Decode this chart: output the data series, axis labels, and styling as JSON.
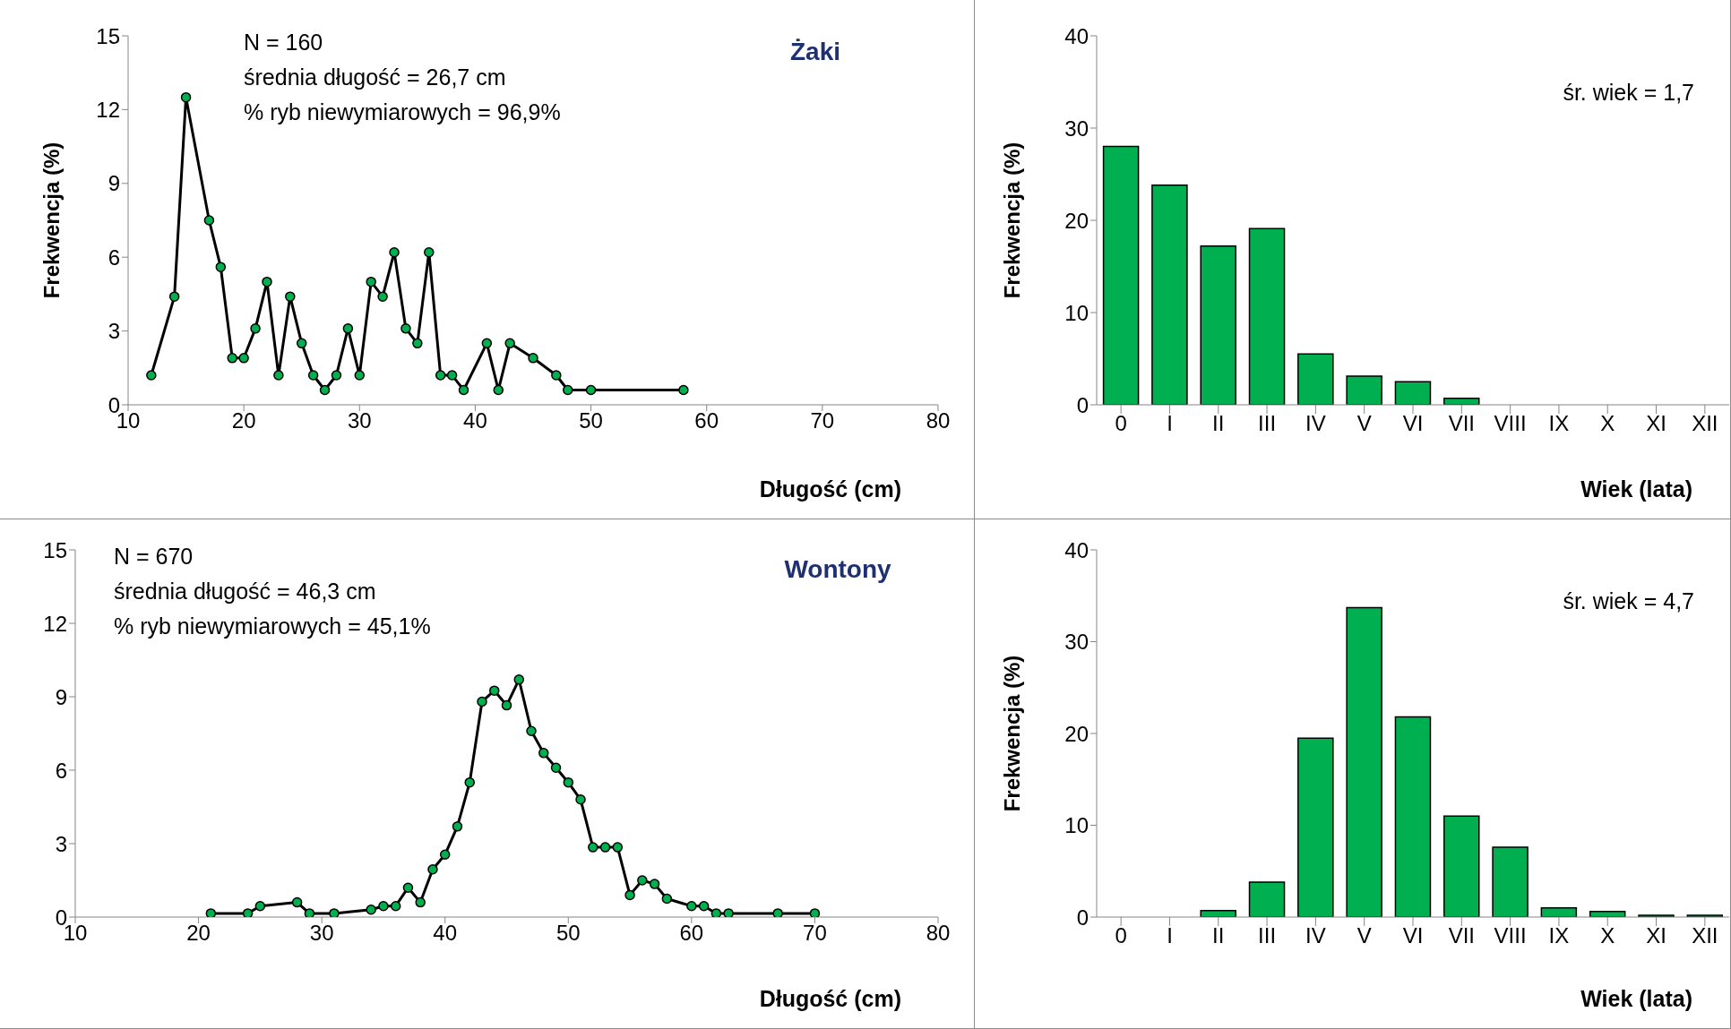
{
  "chart_data": [
    {
      "type": "line",
      "title": "Żaki",
      "ylabel": "Frekwencja (%)",
      "xlabel": "Długość (cm)",
      "annotations": [
        "N = 160",
        "średnia długość = 26,7 cm",
        "% ryb niewymiarowych = 96,9%"
      ],
      "xlim": [
        10,
        80
      ],
      "xticks": [
        10,
        20,
        30,
        40,
        50,
        60,
        70,
        80
      ],
      "ylim": [
        0,
        15
      ],
      "yticks": [
        0,
        3,
        6,
        9,
        12,
        15
      ],
      "marker": "circle",
      "line_style": "solid",
      "grid": false,
      "legend": false,
      "series": [
        {
          "color": "#00b050",
          "x": [
            12,
            14,
            15,
            17,
            18,
            19,
            20,
            21,
            22,
            23,
            24,
            25,
            26,
            27,
            28,
            29,
            30,
            31,
            32,
            33,
            34,
            35,
            36,
            37,
            38,
            39,
            41,
            42,
            43,
            45,
            47,
            48,
            50,
            58
          ],
          "values": [
            1.2,
            4.4,
            12.5,
            7.5,
            5.6,
            1.9,
            1.9,
            3.1,
            5.0,
            1.2,
            4.4,
            2.5,
            1.2,
            0.6,
            1.2,
            3.1,
            1.2,
            5.0,
            4.4,
            6.2,
            3.1,
            2.5,
            6.2,
            1.2,
            1.2,
            0.6,
            2.5,
            0.6,
            2.5,
            1.9,
            1.2,
            0.6,
            0.6,
            0.6
          ]
        }
      ]
    },
    {
      "type": "bar",
      "xlabel": "Wiek (lata)",
      "ylabel": "Frekwencja (%)",
      "annotations": [
        "śr. wiek = 1,7"
      ],
      "categories": [
        "0",
        "I",
        "II",
        "III",
        "IV",
        "V",
        "VI",
        "VII",
        "VIII",
        "IX",
        "X",
        "XI",
        "XII"
      ],
      "ylim": [
        0,
        40
      ],
      "yticks": [
        0,
        10,
        20,
        30,
        40
      ],
      "grid": false,
      "legend": false,
      "series": [
        {
          "color": "#00b050",
          "values": [
            28.0,
            23.8,
            17.2,
            19.1,
            5.5,
            3.1,
            2.5,
            0.7,
            0,
            0,
            0,
            0,
            0
          ]
        }
      ]
    },
    {
      "type": "line",
      "title": "Wontony",
      "xlabel": "Długość (cm)",
      "annotations": [
        "N = 670",
        "średnia długość = 46,3 cm",
        "% ryb niewymiarowych = 45,1%"
      ],
      "xlim": [
        10,
        80
      ],
      "xticks": [
        10,
        20,
        30,
        40,
        50,
        60,
        70,
        80
      ],
      "ylim": [
        0,
        15
      ],
      "yticks": [
        0,
        3,
        6,
        9,
        12,
        15
      ],
      "marker": "circle",
      "line_style": "solid",
      "grid": false,
      "legend": false,
      "series": [
        {
          "color": "#00b050",
          "x": [
            21,
            24,
            25,
            28,
            29,
            31,
            34,
            35,
            36,
            37,
            38,
            39,
            40,
            41,
            42,
            43,
            44,
            45,
            46,
            47,
            48,
            49,
            50,
            51,
            52,
            53,
            54,
            55,
            56,
            57,
            58,
            60,
            61,
            62,
            63,
            67,
            70
          ],
          "values": [
            0.15,
            0.15,
            0.45,
            0.6,
            0.15,
            0.15,
            0.3,
            0.45,
            0.45,
            1.2,
            0.6,
            1.95,
            2.55,
            3.7,
            5.5,
            8.8,
            9.25,
            8.65,
            9.7,
            7.6,
            6.7,
            6.1,
            5.5,
            4.8,
            2.85,
            2.85,
            2.85,
            0.9,
            1.5,
            1.35,
            0.75,
            0.45,
            0.45,
            0.15,
            0.15,
            0.15,
            0.15
          ]
        }
      ]
    },
    {
      "type": "bar",
      "xlabel": "Wiek (lata)",
      "ylabel": "Frekwencja (%)",
      "annotations": [
        "śr. wiek = 4,7"
      ],
      "categories": [
        "0",
        "I",
        "II",
        "III",
        "IV",
        "V",
        "VI",
        "VII",
        "VIII",
        "IX",
        "X",
        "XI",
        "XII"
      ],
      "ylim": [
        0,
        40
      ],
      "yticks": [
        0,
        10,
        20,
        30,
        40
      ],
      "grid": false,
      "legend": false,
      "series": [
        {
          "color": "#00b050",
          "values": [
            0,
            0,
            0.7,
            3.8,
            19.5,
            33.7,
            21.8,
            11.0,
            7.6,
            1.0,
            0.6,
            0.2,
            0.2
          ]
        }
      ]
    }
  ]
}
